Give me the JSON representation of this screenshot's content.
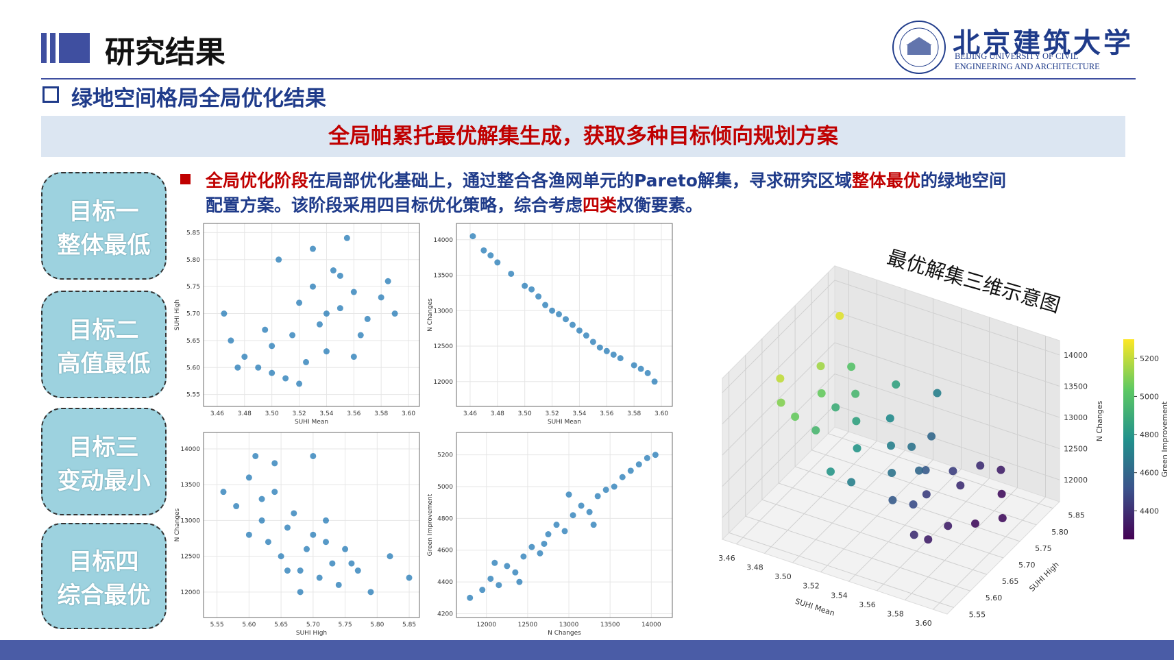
{
  "header": {
    "title": "研究结果",
    "logo": {
      "name": "北京建筑大学",
      "english": [
        "BEIJING UNIVERSITY OF CIVIL",
        "ENGINEERING AND ARCHITECTURE"
      ]
    }
  },
  "section": "绿地空间格局全局优化结果",
  "banner": "全局帕累托最优解集生成，获取多种目标倾向规划方案",
  "objectives": [
    [
      "目标一",
      "整体最低"
    ],
    [
      "目标二",
      "高值最低"
    ],
    [
      "目标三",
      "变动最小"
    ],
    [
      "目标四",
      "综合最优"
    ]
  ],
  "paragraph": [
    [
      {
        "text": "全局优化阶段",
        "emphasis": true
      },
      {
        "text": "在局部优化基础上，通过整合各渔网单元的Pareto解集，寻求研究区域",
        "emphasis": false
      },
      {
        "text": "整体最优",
        "emphasis": true
      },
      {
        "text": "的绿地空间",
        "emphasis": false
      }
    ],
    [
      {
        "text": "配置方案。该阶段采用四目标优化策略，综合考虑",
        "emphasis": false
      },
      {
        "text": "四类",
        "emphasis": true
      },
      {
        "text": "权衡要素。",
        "emphasis": false
      }
    ]
  ],
  "chart_data": [
    {
      "type": "scatter",
      "xlabel": "SUHI Mean",
      "ylabel": "SUHI High",
      "color": "#1f77b4",
      "grid": true,
      "x": [
        3.465,
        3.47,
        3.48,
        3.49,
        3.5,
        3.505,
        3.51,
        3.515,
        3.52,
        3.525,
        3.53,
        3.535,
        3.54,
        3.545,
        3.55,
        3.555,
        3.56,
        3.565,
        3.57,
        3.58,
        3.585,
        3.59,
        3.475,
        3.495,
        3.52,
        3.54,
        3.56,
        3.5,
        3.53,
        3.55
      ],
      "y": [
        5.7,
        5.65,
        5.62,
        5.6,
        5.64,
        5.8,
        5.58,
        5.66,
        5.72,
        5.61,
        5.75,
        5.68,
        5.63,
        5.78,
        5.71,
        5.84,
        5.74,
        5.66,
        5.69,
        5.73,
        5.76,
        5.7,
        5.6,
        5.67,
        5.57,
        5.7,
        5.62,
        5.59,
        5.82,
        5.77
      ],
      "xlim": [
        3.45,
        3.608
      ],
      "ylim": [
        5.528,
        5.867
      ],
      "xticks": [
        3.46,
        3.48,
        {
          "value": 3.5,
          "label": "3.50"
        },
        3.52,
        3.54,
        3.56,
        3.58,
        {
          "value": 3.6,
          "label": "3.60"
        }
      ],
      "yticks": [
        5.55,
        {
          "value": 5.6,
          "label": "5.60"
        },
        5.65,
        {
          "value": 5.7,
          "label": "5.70"
        },
        5.75,
        {
          "value": 5.8,
          "label": "5.80"
        },
        5.85
      ]
    },
    {
      "type": "scatter",
      "xlabel": "SUHI Mean",
      "ylabel": "N Changes",
      "color": "#1f77b4",
      "grid": true,
      "x": [
        3.462,
        3.47,
        3.48,
        3.49,
        3.5,
        3.51,
        3.515,
        3.52,
        3.53,
        3.54,
        3.545,
        3.55,
        3.56,
        3.57,
        3.58,
        3.59,
        3.595,
        3.475,
        3.505,
        3.525,
        3.535,
        3.555,
        3.565,
        3.585
      ],
      "y": [
        14050,
        13850,
        13680,
        13520,
        13350,
        13200,
        13080,
        13000,
        12880,
        12720,
        12650,
        12560,
        12430,
        12330,
        12230,
        12120,
        12000,
        13780,
        13300,
        12950,
        12800,
        12480,
        12380,
        12180
      ],
      "xlim": [
        3.45,
        3.608
      ],
      "ylim": [
        11650,
        14230
      ],
      "xticks": [
        3.46,
        3.48,
        {
          "value": 3.5,
          "label": "3.50"
        },
        3.52,
        3.54,
        3.56,
        3.58,
        {
          "value": 3.6,
          "label": "3.60"
        }
      ],
      "yticks": [
        12000,
        12500,
        13000,
        13500,
        14000
      ]
    },
    {
      "type": "scatter",
      "xlabel": "SUHI High",
      "ylabel": "N Changes",
      "color": "#1f77b4",
      "grid": true,
      "x": [
        5.56,
        5.58,
        5.6,
        5.61,
        5.62,
        5.63,
        5.64,
        5.65,
        5.66,
        5.67,
        5.68,
        5.69,
        5.7,
        5.71,
        5.72,
        5.73,
        5.74,
        5.75,
        5.77,
        5.79,
        5.82,
        5.85,
        5.6,
        5.64,
        5.68,
        5.72,
        5.66,
        5.62,
        5.7,
        5.76
      ],
      "y": [
        13400,
        13200,
        13600,
        13900,
        13000,
        12700,
        13400,
        12500,
        12900,
        13100,
        12300,
        12600,
        12800,
        12200,
        13000,
        12400,
        12100,
        12600,
        12300,
        12000,
        12500,
        12200,
        12800,
        13800,
        12000,
        12700,
        12300,
        13300,
        13900,
        12400
      ],
      "xlim": [
        5.529,
        5.866
      ],
      "ylim": [
        11644,
        14230
      ],
      "xticks": [
        5.55,
        {
          "value": 5.6,
          "label": "5.60"
        },
        5.65,
        {
          "value": 5.7,
          "label": "5.70"
        },
        5.75,
        {
          "value": 5.8,
          "label": "5.80"
        },
        5.85
      ],
      "yticks": [
        12000,
        12500,
        13000,
        13500,
        14000
      ]
    },
    {
      "type": "scatter",
      "xlabel": "N Changes",
      "ylabel": "Green Improvement",
      "color": "#1f77b4",
      "grid": true,
      "x": [
        11800,
        11950,
        12050,
        12150,
        12250,
        12350,
        12450,
        12550,
        12650,
        12750,
        12850,
        12950,
        13050,
        13150,
        13250,
        13350,
        13450,
        13550,
        13650,
        13750,
        13850,
        13950,
        14050,
        12100,
        12400,
        12700,
        13000,
        13300
      ],
      "y": [
        4300,
        4350,
        4420,
        4380,
        4500,
        4460,
        4560,
        4620,
        4580,
        4700,
        4760,
        4720,
        4820,
        4880,
        4840,
        4940,
        4980,
        5000,
        5060,
        5100,
        5140,
        5180,
        5200,
        4520,
        4400,
        4640,
        4950,
        4760
      ],
      "xlim": [
        11636,
        14255
      ],
      "ylim": [
        4176,
        5341
      ],
      "xticks": [
        12000,
        12500,
        13000,
        13500,
        14000
      ],
      "yticks": [
        4200,
        4400,
        4600,
        4800,
        5000,
        5200
      ]
    },
    {
      "type": "scatter3d",
      "title": "最优解集三维示意图",
      "xlabel": "SUHI Mean",
      "ylabel": "SUHI High",
      "zlabel": "N Changes",
      "clabel": "Green Improvement",
      "colormap": "viridis",
      "x": [
        3.47,
        3.48,
        3.48,
        3.49,
        3.49,
        3.5,
        3.5,
        3.51,
        3.51,
        3.52,
        3.52,
        3.53,
        3.53,
        3.54,
        3.54,
        3.55,
        3.55,
        3.56,
        3.56,
        3.57,
        3.57,
        3.58,
        3.58,
        3.59,
        3.59,
        3.6,
        3.47,
        3.5,
        3.53,
        3.56,
        3.58,
        3.52,
        3.55,
        3.57,
        3.49,
        3.54
      ],
      "y": [
        5.62,
        5.7,
        5.58,
        5.66,
        5.75,
        5.6,
        5.72,
        5.68,
        5.8,
        5.64,
        5.74,
        5.58,
        5.7,
        5.66,
        5.78,
        5.62,
        5.72,
        5.68,
        5.76,
        5.6,
        5.74,
        5.66,
        5.82,
        5.7,
        5.78,
        5.74,
        5.8,
        5.66,
        5.84,
        5.64,
        5.6,
        5.56,
        5.7,
        5.8,
        5.58,
        5.72
      ],
      "z": [
        13900,
        13750,
        13800,
        13600,
        13550,
        13400,
        13350,
        13200,
        13150,
        13050,
        13000,
        12900,
        12850,
        12700,
        12650,
        12550,
        12500,
        12400,
        12350,
        12250,
        12300,
        12150,
        12200,
        12050,
        12100,
        12000,
        13950,
        13450,
        12950,
        12450,
        12250,
        13100,
        12600,
        12300,
        13650,
        12800
      ],
      "c": [
        5200,
        5150,
        5100,
        5050,
        5000,
        4950,
        4950,
        4850,
        4850,
        4800,
        4750,
        4700,
        4700,
        4650,
        4600,
        4550,
        4550,
        4450,
        4450,
        4400,
        4400,
        4350,
        4350,
        4300,
        4300,
        4300,
        5250,
        4900,
        4700,
        4500,
        4350,
        4800,
        4600,
        4400,
        5050,
        4650
      ],
      "xlim": [
        3.45,
        3.61
      ],
      "ylim": [
        5.53,
        5.87
      ],
      "zlim": [
        11650,
        14230
      ],
      "clim": [
        4250,
        5300
      ],
      "xticks": [
        3.46,
        3.48,
        {
          "value": 3.5,
          "label": "3.50"
        },
        3.52,
        3.54,
        3.56,
        3.58,
        {
          "value": 3.6,
          "label": "3.60"
        }
      ],
      "yticks": [
        5.55,
        {
          "value": 5.6,
          "label": "5.60"
        },
        5.65,
        {
          "value": 5.7,
          "label": "5.70"
        },
        5.75,
        {
          "value": 5.8,
          "label": "5.80"
        },
        5.85
      ],
      "zticks": [
        12000,
        12500,
        13000,
        13500,
        14000
      ],
      "cticks": [
        4400,
        4600,
        4800,
        5000,
        5200
      ]
    }
  ]
}
